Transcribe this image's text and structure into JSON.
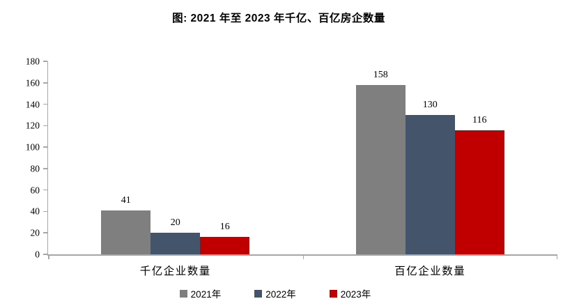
{
  "title": "图: 2021 年至 2023 年千亿、百亿房企数量",
  "chart_data": {
    "type": "bar",
    "title": "图: 2021 年至 2023 年千亿、百亿房企数量",
    "categories": [
      "千亿企业数量",
      "百亿企业数量"
    ],
    "series": [
      {
        "name": "2021年",
        "color": "#7F7F7F",
        "values": [
          41,
          158
        ]
      },
      {
        "name": "2022年",
        "color": "#44546A",
        "values": [
          20,
          130
        ]
      },
      {
        "name": "2023年",
        "color": "#C00000",
        "values": [
          16,
          116
        ]
      }
    ],
    "ylim": [
      0,
      180
    ],
    "yticks": [
      0,
      20,
      40,
      60,
      80,
      100,
      120,
      140,
      160,
      180
    ],
    "grid": false,
    "legend_position": "bottom",
    "axis_color": "#a6a6a6",
    "text_color": "#000000",
    "background_color": "#ffffff"
  }
}
